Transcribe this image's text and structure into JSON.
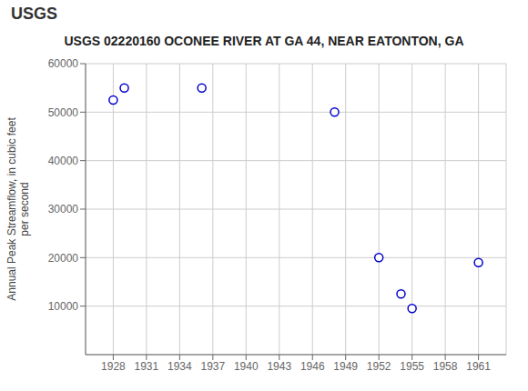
{
  "chart_data": {
    "type": "scatter",
    "title": "USGS 02220160 OCONEE RIVER AT GA 44, NEAR EATONTON, GA",
    "annotations": [
      "USGS"
    ],
    "ylabel": "Annual Peak Streamflow, in cubic feet\nper second",
    "x": [
      1928,
      1929,
      1936,
      1948,
      1952,
      1954,
      1955,
      1961
    ],
    "values": [
      52500,
      55000,
      55000,
      50000,
      20000,
      12500,
      9500,
      19000
    ],
    "color": "#0000CC",
    "marker": "circle",
    "xlim": [
      1925.5,
      1963.5
    ],
    "ylim": [
      0,
      60000
    ],
    "xticks": [
      1928,
      1931,
      1934,
      1937,
      1940,
      1943,
      1946,
      1949,
      1952,
      1955,
      1958,
      1961
    ],
    "yticks": [
      10000,
      20000,
      30000,
      40000,
      50000,
      60000
    ],
    "grid": true
  }
}
